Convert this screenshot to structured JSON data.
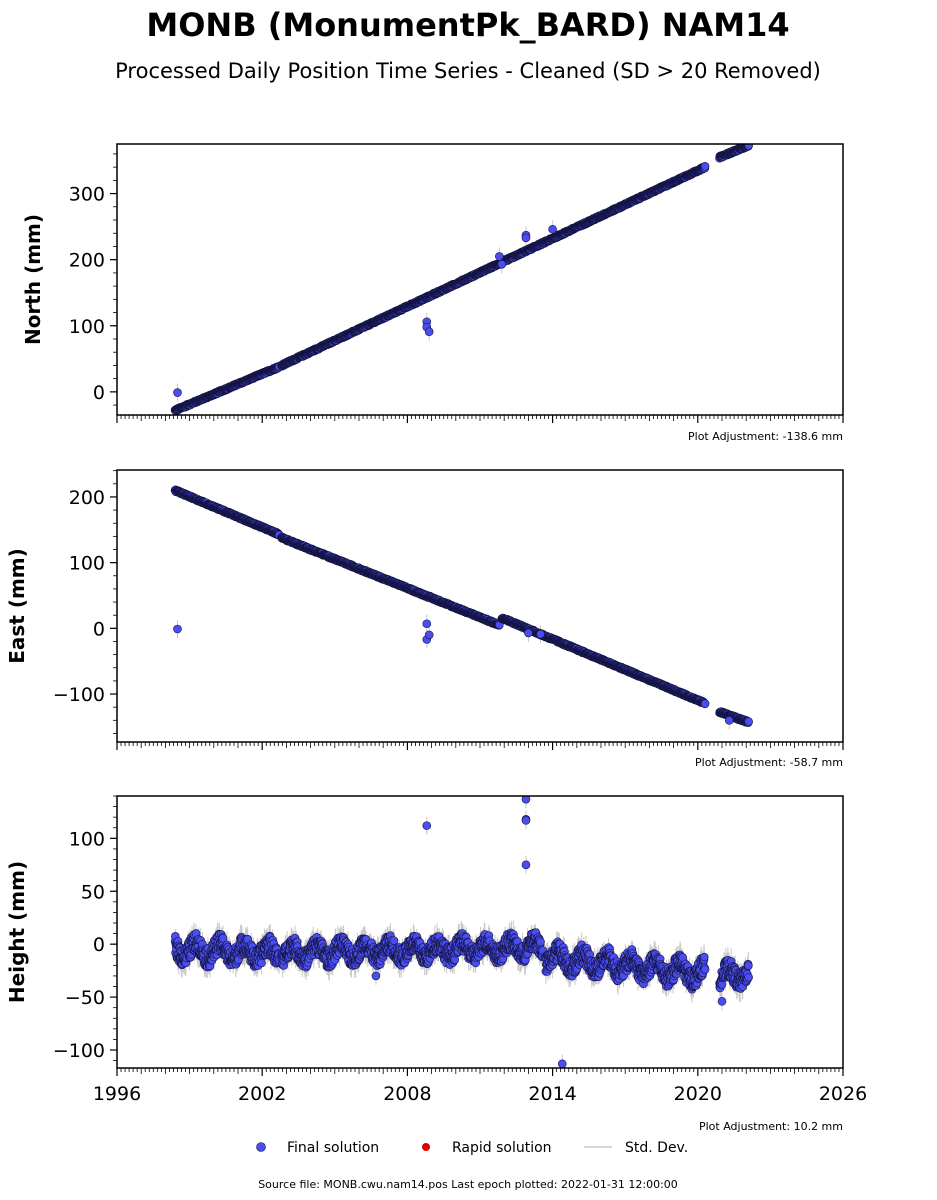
{
  "title": "MONB (MonumentPk_BARD) NAM14",
  "subtitle": "Processed Daily Position Time Series - Cleaned (SD > 20 Removed)",
  "footer": "Source file: MONB.cwu.nam14.pos  Last epoch plotted: 2022-01-31 12:00:00",
  "legend": [
    {
      "label": "Final solution",
      "color": "#4a4ef0",
      "marker": "circle"
    },
    {
      "label": "Rapid solution",
      "color": "#e00000",
      "marker": "circle"
    },
    {
      "label": "Std. Dev.",
      "color": "#c8c8c8",
      "marker": "line"
    }
  ],
  "colors": {
    "final_fill": "#4a4ef0",
    "final_edge": "#141440",
    "std_dev": "#c8c8c8"
  },
  "chart_data": [
    {
      "type": "scatter",
      "ylabel": "North (mm)",
      "adjustment": "Plot Adjustment: -138.6 mm",
      "xlim": [
        1996,
        2026
      ],
      "ylim": [
        -35,
        375
      ],
      "yticks": [
        0,
        100,
        200,
        300
      ],
      "ytick_labels": [
        "0",
        "100",
        "200",
        "300"
      ],
      "x_tick_labels_shown": false,
      "trend_segments": [
        {
          "x": [
            1998.4,
            2002.7
          ],
          "y": [
            -28,
            38
          ],
          "spread": 3
        },
        {
          "x": [
            2002.8,
            2020.3
          ],
          "y": [
            40,
            340
          ],
          "spread": 3
        },
        {
          "x": [
            2020.9,
            2022.1
          ],
          "y": [
            355,
            373
          ],
          "spread": 3
        }
      ],
      "outliers": [
        {
          "x": 1998.5,
          "y": -1
        },
        {
          "x": 2008.8,
          "y": 106
        },
        {
          "x": 2008.8,
          "y": 98
        },
        {
          "x": 2008.9,
          "y": 91
        },
        {
          "x": 2011.8,
          "y": 205
        },
        {
          "x": 2011.9,
          "y": 193
        },
        {
          "x": 2012.9,
          "y": 237
        },
        {
          "x": 2012.9,
          "y": 233
        },
        {
          "x": 2014.0,
          "y": 246
        }
      ]
    },
    {
      "type": "scatter",
      "ylabel": "East (mm)",
      "adjustment": "Plot Adjustment: -58.7 mm",
      "xlim": [
        1996,
        2026
      ],
      "ylim": [
        -173,
        241
      ],
      "yticks": [
        -100,
        0,
        100,
        200
      ],
      "ytick_labels": [
        "−100",
        "0",
        "100",
        "200"
      ],
      "x_tick_labels_shown": false,
      "trend_segments": [
        {
          "x": [
            1998.4,
            2002.7
          ],
          "y": [
            210,
            143
          ],
          "spread": 3
        },
        {
          "x": [
            2002.8,
            2011.8
          ],
          "y": [
            138,
            5
          ],
          "spread": 3
        },
        {
          "x": [
            2011.9,
            2020.3
          ],
          "y": [
            16,
            -114
          ],
          "spread": 3
        },
        {
          "x": [
            2020.9,
            2022.1
          ],
          "y": [
            -127,
            -143
          ],
          "spread": 3
        }
      ],
      "outliers": [
        {
          "x": 1998.5,
          "y": -1
        },
        {
          "x": 2008.8,
          "y": 7
        },
        {
          "x": 2008.8,
          "y": -17
        },
        {
          "x": 2008.9,
          "y": -10
        },
        {
          "x": 2013.0,
          "y": -7
        },
        {
          "x": 2013.5,
          "y": -9
        },
        {
          "x": 2021.3,
          "y": -140
        }
      ]
    },
    {
      "type": "scatter",
      "ylabel": "Height (mm)",
      "adjustment": "Plot Adjustment: 10.2 mm",
      "xlim": [
        1996,
        2026
      ],
      "ylim": [
        -117,
        140
      ],
      "yticks": [
        -100,
        -50,
        0,
        50,
        100
      ],
      "ytick_labels": [
        "−100",
        "−50",
        "0",
        "50",
        "100"
      ],
      "x_tick_labels_shown": true,
      "xticks": [
        1996,
        2002,
        2008,
        2014,
        2020,
        2026
      ],
      "xtick_labels": [
        "1996",
        "2002",
        "2008",
        "2014",
        "2020",
        "2026"
      ],
      "trend_segments": [
        {
          "x": [
            1998.4,
            2002.7
          ],
          "y": [
            -5,
            -8
          ],
          "spread": 14
        },
        {
          "x": [
            2002.8,
            2013.6
          ],
          "y": [
            -8,
            -3
          ],
          "spread": 13
        },
        {
          "x": [
            2013.7,
            2020.3
          ],
          "y": [
            -12,
            -28
          ],
          "spread": 14
        },
        {
          "x": [
            2020.9,
            2022.1
          ],
          "y": [
            -30,
            -28
          ],
          "spread": 13
        }
      ],
      "outliers": [
        {
          "x": 2008.8,
          "y": 112
        },
        {
          "x": 2012.9,
          "y": 137
        },
        {
          "x": 2012.9,
          "y": 118
        },
        {
          "x": 2012.9,
          "y": 117
        },
        {
          "x": 2012.9,
          "y": 75
        },
        {
          "x": 2014.4,
          "y": -113
        },
        {
          "x": 2006.7,
          "y": -30
        },
        {
          "x": 2021.0,
          "y": -54
        }
      ]
    }
  ]
}
